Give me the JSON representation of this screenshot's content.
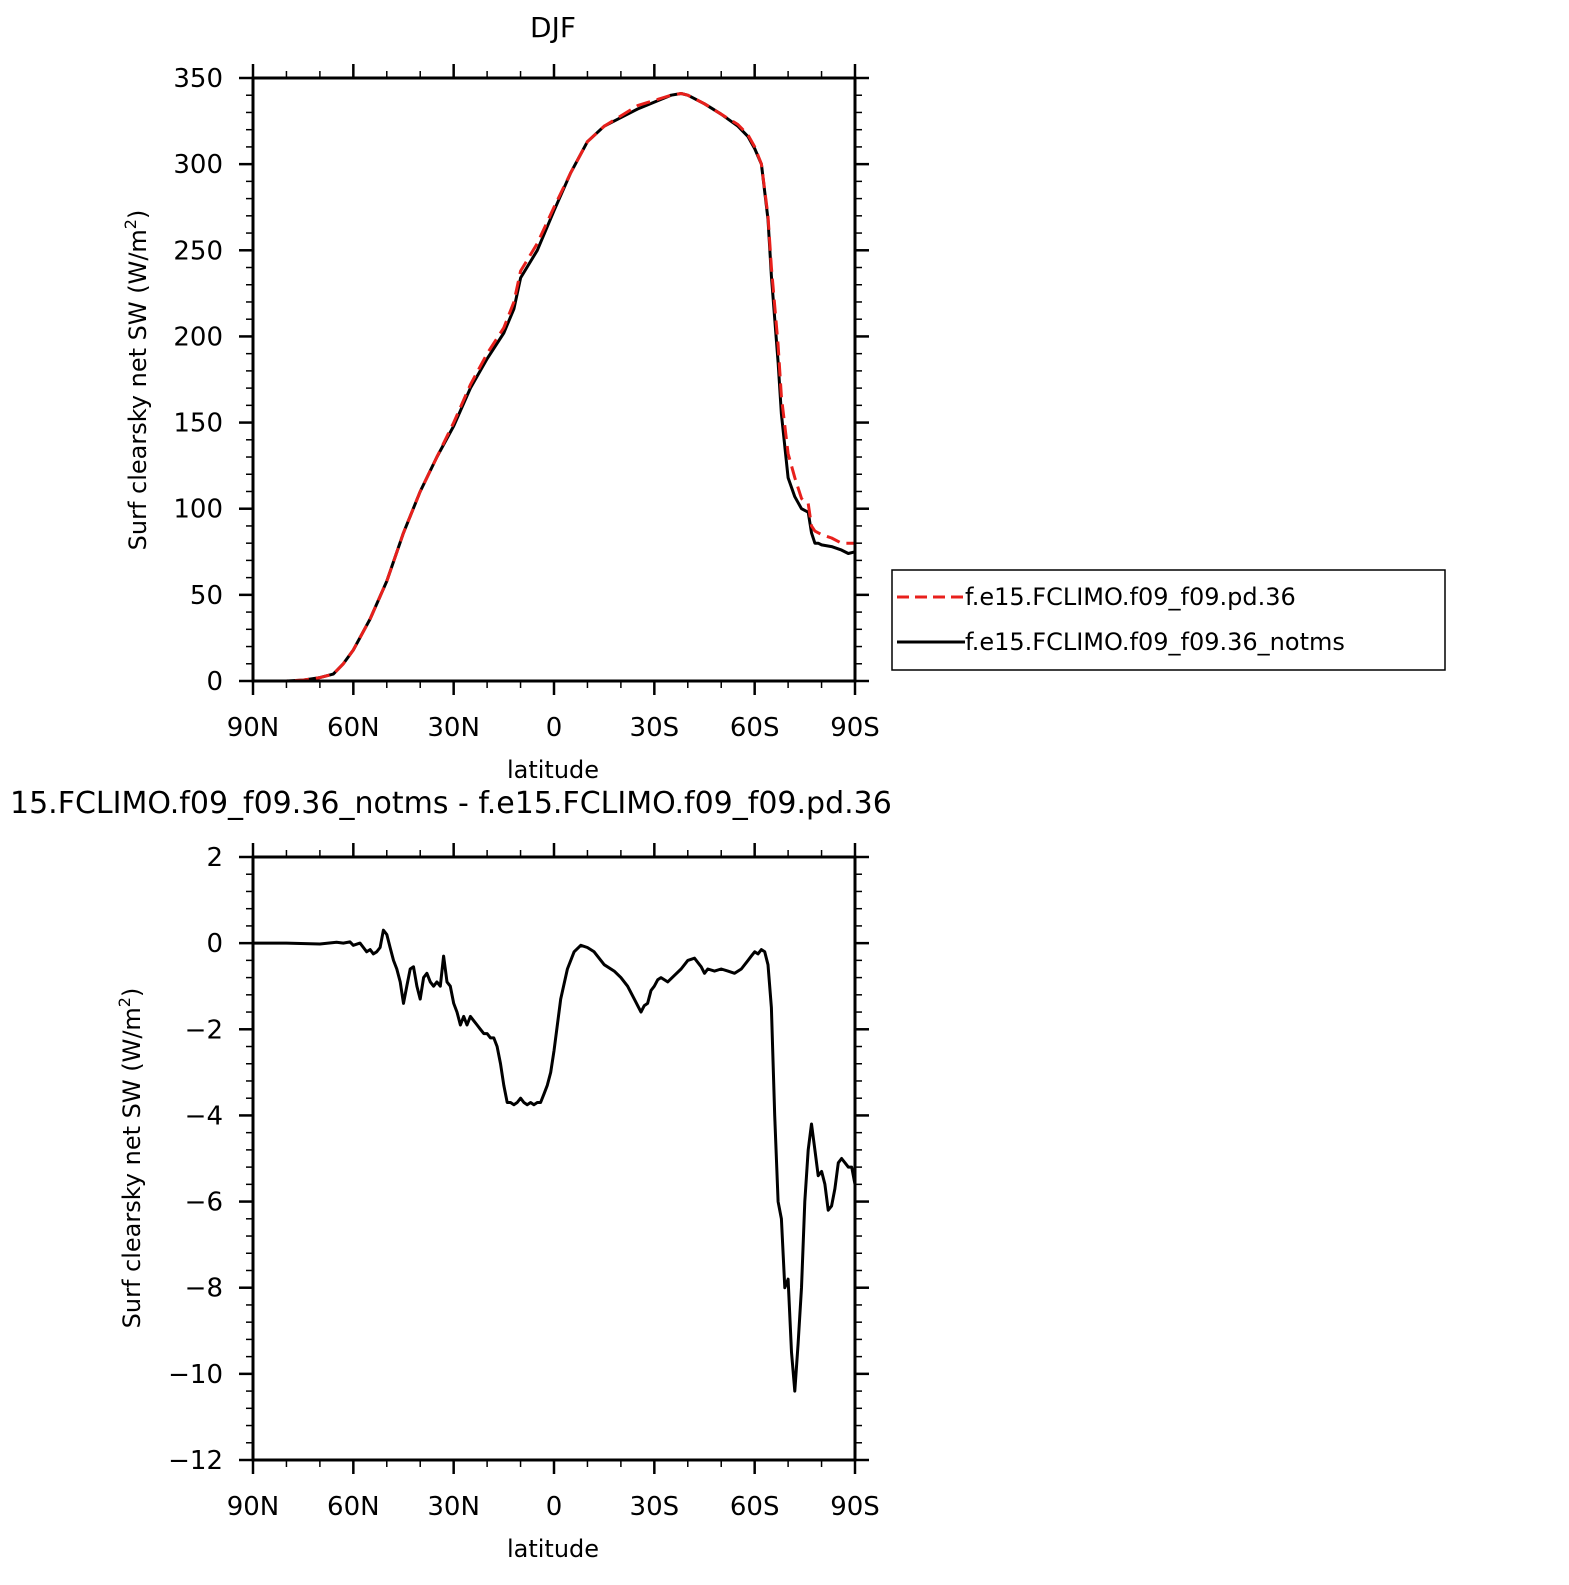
{
  "chart_data": [
    {
      "type": "line",
      "title": "DJF",
      "xlabel": "latitude",
      "ylabel": "Surf clearsky net SW (W/m",
      "ylabel_sup": "2",
      "ylabel_end": ")",
      "xlim": [
        90,
        -90
      ],
      "ylim": [
        0,
        350
      ],
      "xticks": [
        90,
        60,
        30,
        0,
        -30,
        -60,
        -90
      ],
      "xticklabels": [
        "90N",
        "60N",
        "30N",
        "0",
        "30S",
        "60S",
        "90S"
      ],
      "yticks": [
        0,
        50,
        100,
        150,
        200,
        250,
        300,
        350
      ],
      "yticklabels": [
        "0",
        "50",
        "100",
        "150",
        "200",
        "250",
        "300",
        "350"
      ],
      "legend_position": "right",
      "series": [
        {
          "name": "f.e15.FCLIMO.f09_f09.pd.36",
          "color": "#e8201c",
          "dash": "dashed",
          "x": [
            90,
            80,
            75,
            70,
            66,
            63,
            60,
            55,
            50,
            45,
            40,
            35,
            30,
            25,
            20,
            15,
            12,
            10,
            5,
            0,
            -5,
            -10,
            -15,
            -20,
            -25,
            -30,
            -35,
            -38,
            -40,
            -45,
            -50,
            -55,
            -58,
            -60,
            -62,
            -64,
            -65,
            -67,
            -68,
            -70,
            -72,
            -74,
            -75,
            -76,
            -77,
            -78,
            -79,
            -80,
            -83,
            -86,
            -88,
            -90
          ],
          "y": [
            0,
            0,
            0.5,
            2,
            4,
            10,
            18,
            36,
            58,
            86,
            110,
            130,
            150,
            172,
            190,
            205,
            220,
            238,
            254,
            275,
            295,
            313,
            322,
            328,
            334,
            337,
            340,
            341,
            340,
            335,
            329,
            323,
            317,
            310,
            300,
            270,
            240,
            195,
            165,
            132,
            118,
            106,
            104,
            103,
            90,
            87,
            86,
            85,
            83,
            80,
            80,
            80
          ]
        },
        {
          "name": "f.e15.FCLIMO.f09_f09.36_notms",
          "color": "#000000",
          "dash": "solid",
          "x": [
            90,
            80,
            75,
            70,
            66,
            63,
            60,
            55,
            50,
            45,
            40,
            35,
            30,
            25,
            20,
            15,
            12,
            10,
            5,
            0,
            -5,
            -10,
            -15,
            -20,
            -25,
            -30,
            -35,
            -38,
            -40,
            -45,
            -50,
            -55,
            -58,
            -60,
            -62,
            -64,
            -65,
            -67,
            -68,
            -70,
            -72,
            -74,
            -75,
            -76,
            -77,
            -78,
            -79,
            -80,
            -83,
            -86,
            -88,
            -90
          ],
          "y": [
            0,
            0,
            0.5,
            2,
            4,
            10,
            18,
            36,
            58,
            86,
            110,
            130,
            148,
            170,
            187,
            202,
            216,
            234,
            250,
            273,
            295,
            313,
            322,
            327,
            332,
            336,
            340,
            341,
            340,
            335,
            329,
            322,
            316,
            309,
            300,
            268,
            235,
            185,
            155,
            118,
            107,
            100,
            99,
            98,
            86,
            80,
            80,
            79,
            78,
            76,
            74,
            75
          ]
        }
      ]
    },
    {
      "type": "line",
      "title": "15.FCLIMO.f09_f09.36_notms - f.e15.FCLIMO.f09_f09.pd.36",
      "xlabel": "latitude",
      "ylabel": "Surf clearsky net SW (W/m",
      "ylabel_sup": "2",
      "ylabel_end": ")",
      "xlim": [
        90,
        -90
      ],
      "ylim": [
        -12,
        2
      ],
      "xticks": [
        90,
        60,
        30,
        0,
        -30,
        -60,
        -90
      ],
      "xticklabels": [
        "90N",
        "60N",
        "30N",
        "0",
        "30S",
        "60S",
        "90S"
      ],
      "yticks": [
        2,
        0,
        -2,
        -4,
        -6,
        -8,
        -10,
        -12
      ],
      "yticklabels": [
        "2",
        "0",
        "−2",
        "−4",
        "−6",
        "−8",
        "−10",
        "−12"
      ],
      "series": [
        {
          "color": "#000000",
          "dash": "solid",
          "x": [
            90,
            80,
            70,
            65,
            63,
            61,
            60,
            58,
            57,
            56,
            55,
            54,
            53,
            52,
            51,
            50,
            49,
            48,
            47,
            46,
            45,
            44,
            43,
            42,
            41,
            40,
            39,
            38,
            37,
            36,
            35,
            34,
            33,
            32,
            31,
            30,
            29,
            28,
            27,
            26,
            25,
            24,
            23,
            22,
            21,
            20,
            19,
            18,
            17,
            16,
            15,
            14,
            13,
            12,
            11,
            10,
            9,
            8,
            7,
            6,
            5,
            4,
            3,
            2,
            1,
            0,
            -2,
            -4,
            -6,
            -8,
            -10,
            -12,
            -15,
            -18,
            -20,
            -22,
            -24,
            -26,
            -27,
            -28,
            -29,
            -30,
            -31,
            -32,
            -34,
            -36,
            -38,
            -40,
            -42,
            -44,
            -45,
            -46,
            -48,
            -50,
            -52,
            -54,
            -56,
            -58,
            -59,
            -60,
            -61,
            -62,
            -63,
            -64,
            -65,
            -66,
            -67,
            -68,
            -69,
            -70,
            -71,
            -72,
            -73,
            -74,
            -75,
            -76,
            -77,
            -78,
            -79,
            -80,
            -81,
            -82,
            -83,
            -84,
            -85,
            -86,
            -87,
            -88,
            -89,
            -90
          ],
          "y": [
            0,
            0,
            -0.02,
            0.02,
            0.0,
            0.03,
            -0.05,
            0.0,
            -0.1,
            -0.2,
            -0.15,
            -0.25,
            -0.2,
            -0.1,
            0.3,
            0.2,
            -0.1,
            -0.4,
            -0.6,
            -0.9,
            -1.4,
            -1.0,
            -0.6,
            -0.55,
            -1.0,
            -1.3,
            -0.8,
            -0.7,
            -0.9,
            -1.0,
            -0.9,
            -1.0,
            -0.3,
            -0.9,
            -1.0,
            -1.4,
            -1.6,
            -1.9,
            -1.7,
            -1.9,
            -1.7,
            -1.8,
            -1.9,
            -2.0,
            -2.1,
            -2.1,
            -2.2,
            -2.2,
            -2.4,
            -2.8,
            -3.3,
            -3.7,
            -3.7,
            -3.75,
            -3.7,
            -3.6,
            -3.7,
            -3.75,
            -3.7,
            -3.75,
            -3.7,
            -3.7,
            -3.5,
            -3.3,
            -3.0,
            -2.5,
            -1.3,
            -0.6,
            -0.2,
            -0.05,
            -0.1,
            -0.2,
            -0.5,
            -0.65,
            -0.8,
            -1.0,
            -1.3,
            -1.6,
            -1.45,
            -1.4,
            -1.1,
            -1.0,
            -0.85,
            -0.8,
            -0.9,
            -0.75,
            -0.6,
            -0.4,
            -0.35,
            -0.55,
            -0.7,
            -0.6,
            -0.65,
            -0.6,
            -0.65,
            -0.7,
            -0.6,
            -0.4,
            -0.3,
            -0.2,
            -0.25,
            -0.15,
            -0.2,
            -0.5,
            -1.5,
            -4.0,
            -6.0,
            -6.4,
            -8.0,
            -7.8,
            -9.5,
            -10.4,
            -9.3,
            -8.0,
            -6.0,
            -4.8,
            -4.2,
            -4.8,
            -5.4,
            -5.3,
            -5.6,
            -6.2,
            -6.1,
            -5.7,
            -5.1,
            -5.0,
            -5.1,
            -5.2,
            -5.2,
            -5.6
          ]
        }
      ]
    }
  ]
}
